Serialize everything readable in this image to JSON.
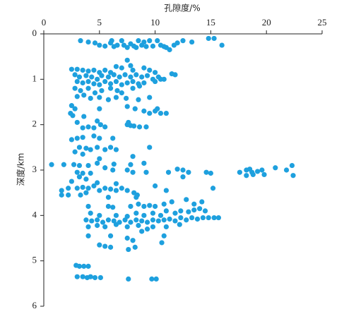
{
  "chart_data": {
    "type": "scatter",
    "x_label": "孔隙度/%",
    "y_label": "深度/km",
    "color": "#1ea0de",
    "x_axis_position": "top",
    "y_inverted": true,
    "xlim": [
      0,
      25
    ],
    "xticks": [
      0,
      5,
      10,
      15,
      20,
      25
    ],
    "ylim": [
      0,
      6
    ],
    "yticks": [
      0,
      1,
      2,
      3,
      4,
      5,
      6
    ],
    "x": [
      3.3,
      4,
      4.6,
      5,
      5.5,
      6,
      6.3,
      6.6,
      7,
      7.2,
      7.5,
      7.8,
      8.1,
      8.5,
      8.8,
      9.2,
      9.5,
      9.8,
      10.2,
      10.5,
      11,
      11.3,
      11.7,
      12,
      12.5,
      13.3,
      14.8,
      15.3,
      16,
      6.1,
      8.3,
      9,
      10.8,
      7.5,
      7.8,
      6.5,
      7,
      8,
      9,
      9.5,
      10,
      2.5,
      3,
      3.5,
      4,
      4.5,
      5,
      5.5,
      6,
      2.8,
      3.2,
      3.8,
      4.3,
      4.8,
      5.2,
      5.8,
      6.3,
      6.8,
      7.3,
      7.8,
      8.3,
      8.8,
      9.3,
      9.8,
      10.3,
      10.8,
      11.5,
      11.8,
      3,
      3.5,
      4,
      4.5,
      5,
      5.5,
      6,
      6.5,
      7,
      7.5,
      8,
      8.5,
      9,
      10,
      10.5,
      2.8,
      3.3,
      4,
      4.6,
      5.2,
      6,
      6.6,
      7,
      8,
      8.6,
      3,
      3.6,
      4.2,
      5,
      5.8,
      6.5,
      7.4,
      8.5,
      9.5,
      2.5,
      2.8,
      2.4,
      2.6,
      5,
      7.5,
      8.2,
      9,
      9.5,
      10,
      10.5,
      11,
      10.2,
      3.6,
      4.8,
      3,
      5.1,
      3.5,
      4,
      4.5,
      5.5,
      7.5,
      7.8,
      8.1,
      8.6,
      9.2,
      7.6,
      2.5,
      3,
      3.5,
      4.5,
      5,
      6.2,
      3.2,
      3.8,
      4.2,
      4.8,
      5.5,
      6,
      6.5,
      2.8,
      9.5,
      3.5,
      8,
      5,
      0.7,
      1.8,
      2.7,
      3.2,
      4,
      4.8,
      6.3,
      7.8,
      9,
      5.5,
      6.2,
      7.5,
      9.2,
      8,
      3,
      3.5,
      4.2,
      3.2,
      3.8,
      2.5,
      11.2,
      12,
      12.5,
      13,
      14.6,
      15,
      12.5,
      17.6,
      18.2,
      18.5,
      18.7,
      18.2,
      18.8,
      19.2,
      19.6,
      19.8,
      20.8,
      21.8,
      22.3,
      22.4,
      15.2,
      1.6,
      2.2,
      1.6,
      2.2,
      3,
      3.5,
      4,
      4.5,
      5,
      5.5,
      6,
      6.5,
      7,
      7.5,
      8.1,
      8.4,
      3.3,
      3.8,
      6.5,
      4.8,
      10,
      11,
      8.3,
      5.8,
      4,
      5.8,
      6.2,
      7.8,
      8.5,
      9,
      9.5,
      10,
      10.8,
      11.5,
      12.8,
      13.5,
      14.2,
      4.2,
      5,
      6.5,
      7.5,
      8.3,
      9,
      9.8,
      10.5,
      11,
      11.8,
      12.3,
      13,
      13.5,
      14,
      14.5,
      3.8,
      4.3,
      4.8,
      5.3,
      5.8,
      6.3,
      6.8,
      7.3,
      7.8,
      8.3,
      8.8,
      9.3,
      9.8,
      10.3,
      10.8,
      11.3,
      11.8,
      12.3,
      12.8,
      13.3,
      13.8,
      14.3,
      14.8,
      15.3,
      15.7,
      4,
      4.8,
      5.5,
      6.5,
      7.5,
      8.5,
      9.3,
      9.8,
      11,
      12.2,
      8.8,
      4,
      6,
      7.5,
      10.8,
      10.6,
      8,
      8.2,
      5,
      5.5,
      6,
      7.6,
      2.9,
      3.2,
      3.6,
      4,
      3,
      3.5,
      3.9,
      4.2,
      4.6,
      5.1,
      7.6,
      9.7,
      10.1
    ],
    "values": [
      0.15,
      0.18,
      0.2,
      0.25,
      0.27,
      0.2,
      0.28,
      0.25,
      0.15,
      0.25,
      0.3,
      0.22,
      0.27,
      0.15,
      0.25,
      0.28,
      0.15,
      0.27,
      0.15,
      0.25,
      0.3,
      0.35,
      0.25,
      0.2,
      0.15,
      0.18,
      0.1,
      0.1,
      0.25,
      0.15,
      0.3,
      0.18,
      0.28,
      0.58,
      0.7,
      0.72,
      0.75,
      0.8,
      0.75,
      0.8,
      0.85,
      0.78,
      0.78,
      0.8,
      0.82,
      0.8,
      0.85,
      0.8,
      0.85,
      0.9,
      0.95,
      0.92,
      0.95,
      1.0,
      0.92,
      0.95,
      0.9,
      0.95,
      0.9,
      0.95,
      0.9,
      0.95,
      0.92,
      1.0,
      0.95,
      1.0,
      0.88,
      0.9,
      1.05,
      1.08,
      1.05,
      1.1,
      1.12,
      1.05,
      1.1,
      1.05,
      1.12,
      1.08,
      1.05,
      1.1,
      1.08,
      1.05,
      1.0,
      1.2,
      1.25,
      1.2,
      1.3,
      1.25,
      1.2,
      1.25,
      1.3,
      1.2,
      1.15,
      1.38,
      1.35,
      1.42,
      1.4,
      1.45,
      1.4,
      1.42,
      1.45,
      1.4,
      1.58,
      1.65,
      1.75,
      1.8,
      1.65,
      1.6,
      1.65,
      1.7,
      1.75,
      1.7,
      1.75,
      1.75,
      1.65,
      1.82,
      1.92,
      1.95,
      2.0,
      2.07,
      2.05,
      2.07,
      2.05,
      2.0,
      2.02,
      2.03,
      2.05,
      2.05,
      1.95,
      2.33,
      2.3,
      2.28,
      2.25,
      2.3,
      2.3,
      2.5,
      2.52,
      2.55,
      2.5,
      2.55,
      2.5,
      2.55,
      2.6,
      2.5,
      2.65,
      2.7,
      2.75,
      2.88,
      2.88,
      2.88,
      2.9,
      2.9,
      2.85,
      2.87,
      2.88,
      2.85,
      2.95,
      3.0,
      3.0,
      3.05,
      3.05,
      3.05,
      3.07,
      3.07,
      3.15,
      3.2,
      3.25,
      3.05,
      2.98,
      3.0,
      3.05,
      3.05,
      3.07,
      3.15,
      3.05,
      3.0,
      2.98,
      3.05,
      3.12,
      3.1,
      3.03,
      3.0,
      3.1,
      2.95,
      3.0,
      2.9,
      3.12,
      3.4,
      3.55,
      3.55,
      3.45,
      3.4,
      3.4,
      3.38,
      3.4,
      3.35,
      3.45,
      3.4,
      3.42,
      3.45,
      3.4,
      3.45,
      3.5,
      3.55,
      3.55,
      3.5,
      3.3,
      3.28,
      3.35,
      3.45,
      3.6,
      3.6,
      3.8,
      3.8,
      3.82,
      3.8,
      3.75,
      3.8,
      3.78,
      3.8,
      3.75,
      3.7,
      3.65,
      3.75,
      3.7,
      3.95,
      4.0,
      4.0,
      4.02,
      3.95,
      4.0,
      3.95,
      4.0,
      3.9,
      3.95,
      3.9,
      3.92,
      3.88,
      3.85,
      3.9,
      4.1,
      4.12,
      4.1,
      4.15,
      4.1,
      4.12,
      4.15,
      4.1,
      4.15,
      4.1,
      4.12,
      4.15,
      4.1,
      4.12,
      4.1,
      4.08,
      4.12,
      4.05,
      4.1,
      4.05,
      4.08,
      4.05,
      4.05,
      4.05,
      4.05,
      4.25,
      4.22,
      4.25,
      4.2,
      4.25,
      4.22,
      4.3,
      4.25,
      4.25,
      4.2,
      4.35,
      4.45,
      4.45,
      4.5,
      4.45,
      4.6,
      4.55,
      4.7,
      4.65,
      4.68,
      4.7,
      4.75,
      5.1,
      5.12,
      5.12,
      5.12,
      5.35,
      5.35,
      5.37,
      5.35,
      5.37,
      5.37,
      5.4,
      5.4,
      5.4
    ]
  }
}
